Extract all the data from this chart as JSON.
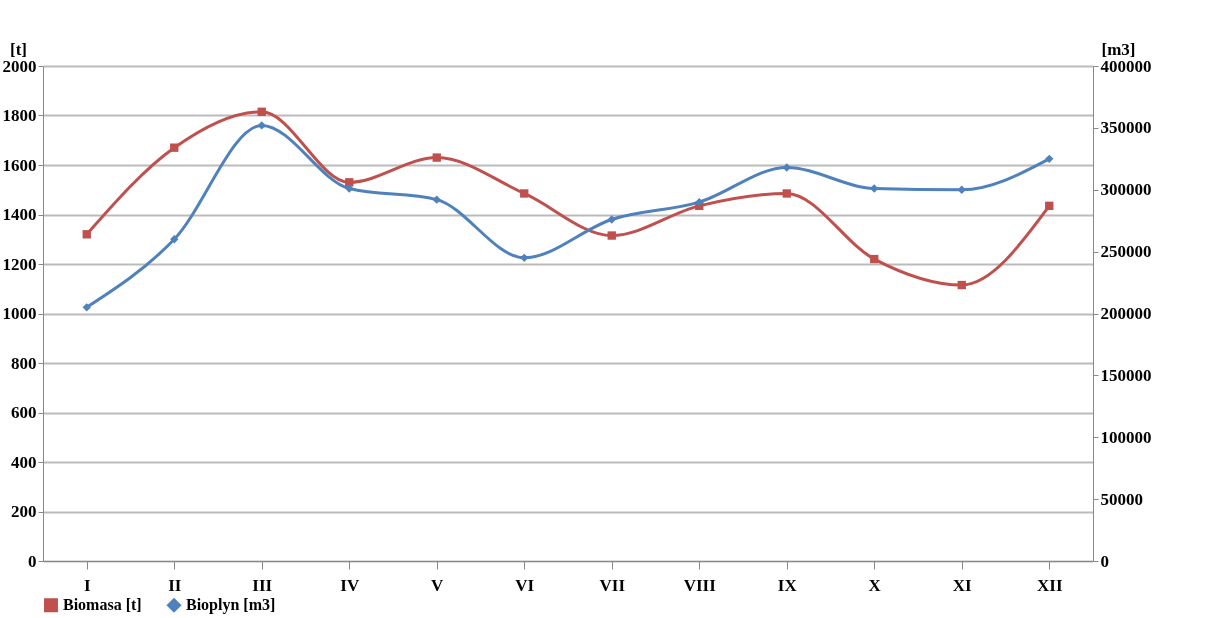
{
  "chart_data": {
    "type": "line",
    "ylabel": "[t]",
    "y2label": "[m3]",
    "categories": [
      "I",
      "II",
      "III",
      "IV",
      "V",
      "VI",
      "VII",
      "VIII",
      "IX",
      "X",
      "XI",
      "XII"
    ],
    "series": [
      {
        "name": "Biomasa [t]",
        "color": "#c0504d",
        "marker": "square",
        "values": [
          1320,
          1670,
          1815,
          1530,
          1630,
          1485,
          1315,
          1435,
          1485,
          1220,
          1115,
          1435
        ]
      },
      {
        "name": "Bioplyn  [m3]",
        "color": "#4f81bd",
        "marker": "diamond",
        "axis": "y2",
        "values": [
          205000,
          260000,
          352000,
          301000,
          292000,
          245000,
          276000,
          290000,
          318000,
          301000,
          300000,
          325000
        ]
      }
    ],
    "ylim": [
      0,
      2000
    ],
    "yticks": [
      0,
      200,
      400,
      600,
      800,
      1000,
      1200,
      1400,
      1600,
      1800,
      2000
    ],
    "y2lim": [
      0,
      400000
    ],
    "y2ticks": [
      0,
      50000,
      100000,
      150000,
      200000,
      250000,
      300000,
      350000,
      400000
    ],
    "grid": "y",
    "legend": "bottom",
    "line_style": "solid"
  }
}
